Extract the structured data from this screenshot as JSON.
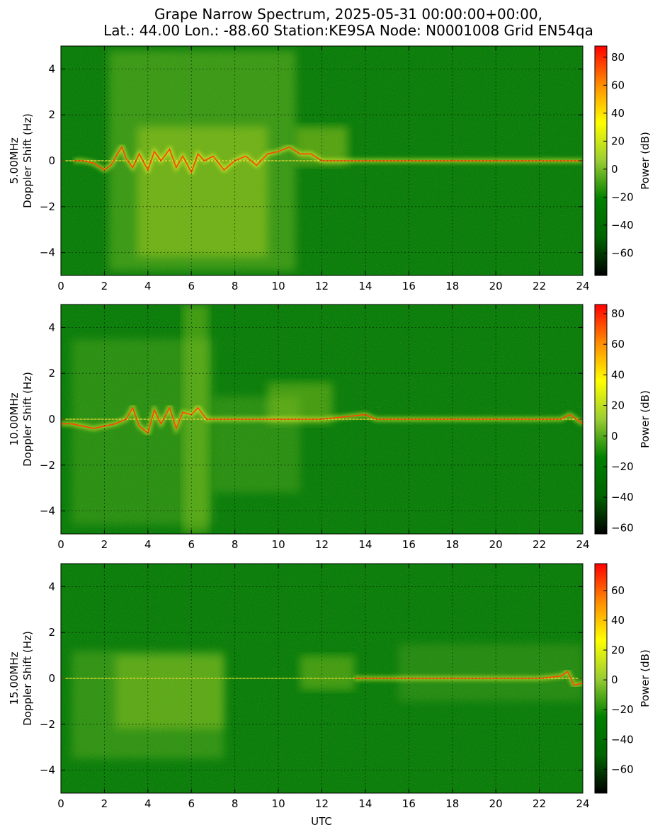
{
  "figure": {
    "title_line1": "Grape Narrow Spectrum, 2025-05-31 00:00:00+00:00,",
    "title_line2": "Lat.: 44.00 Lon.: -88.60 Station:KE9SA Node: N0001008 Grid EN54qa",
    "xlabel": "UTC"
  },
  "colors": {
    "colormap": [
      "#000000",
      "#006400",
      "#008000",
      "#9acd32",
      "#ffff00",
      "#ff8c00",
      "#ff0000"
    ],
    "grid": "#000000",
    "ridge": "#ff4500"
  },
  "chart_data": [
    {
      "type": "heatmap",
      "ylabel_line1": "5.00MHz",
      "ylabel_line2": "Doppler Shift (Hz)",
      "xlim": [
        0,
        24
      ],
      "ylim": [
        -5,
        5
      ],
      "xticks": [
        0,
        2,
        4,
        6,
        8,
        10,
        12,
        14,
        16,
        18,
        20,
        22,
        24
      ],
      "yticks": [
        -4,
        -2,
        0,
        2,
        4
      ],
      "grid": true,
      "colorbar": {
        "label": "Power (dB)",
        "ticks": [
          -60,
          -40,
          -20,
          0,
          20,
          40,
          60,
          80
        ],
        "range": [
          -76,
          88
        ]
      },
      "signal_trace": {
        "x": [
          0.6,
          1.0,
          1.5,
          2.0,
          2.3,
          2.6,
          2.8,
          3.0,
          3.3,
          3.6,
          4.0,
          4.3,
          4.6,
          5.0,
          5.3,
          5.6,
          6.0,
          6.3,
          6.6,
          7.0,
          7.5,
          8.0,
          8.5,
          9.0,
          9.5,
          10.0,
          10.5,
          11.0,
          11.5,
          12.0,
          13.0,
          14.0,
          15.8,
          17.0,
          20.0,
          22.0,
          24.0
        ],
        "y": [
          0.0,
          0.0,
          -0.1,
          -0.4,
          -0.2,
          0.3,
          0.6,
          0.1,
          -0.3,
          0.3,
          -0.4,
          0.4,
          0.0,
          0.5,
          -0.3,
          0.2,
          -0.5,
          0.3,
          0.0,
          0.2,
          -0.4,
          0.0,
          0.2,
          -0.2,
          0.3,
          0.4,
          0.6,
          0.3,
          0.3,
          0.0,
          0.0,
          0.0,
          0.0,
          0.0,
          0.0,
          0.0,
          0.0
        ]
      }
    },
    {
      "type": "heatmap",
      "ylabel_line1": "10.00MHz",
      "ylabel_line2": "Doppler Shift (Hz)",
      "xlim": [
        0,
        24
      ],
      "ylim": [
        -5,
        5
      ],
      "xticks": [
        0,
        2,
        4,
        6,
        8,
        10,
        12,
        14,
        16,
        18,
        20,
        22,
        24
      ],
      "yticks": [
        -4,
        -2,
        0,
        2,
        4
      ],
      "grid": true,
      "colorbar": {
        "label": "Power (dB)",
        "ticks": [
          -60,
          -40,
          -20,
          0,
          20,
          40,
          60,
          80
        ],
        "range": [
          -64,
          86
        ]
      },
      "signal_trace": {
        "x": [
          0.0,
          0.5,
          1.0,
          1.5,
          2.0,
          2.5,
          3.0,
          3.3,
          3.6,
          4.0,
          4.3,
          4.6,
          5.0,
          5.3,
          5.6,
          6.0,
          6.3,
          6.7,
          11.5,
          12.0,
          13.0,
          14.0,
          14.5,
          15.8,
          17.0,
          19.0,
          21.0,
          22.0,
          23.0,
          23.4,
          24.0
        ],
        "y": [
          -0.2,
          -0.2,
          -0.3,
          -0.4,
          -0.3,
          -0.2,
          0.0,
          0.5,
          -0.3,
          -0.6,
          0.4,
          -0.2,
          0.5,
          -0.4,
          0.3,
          0.2,
          0.5,
          0.0,
          0.0,
          0.0,
          0.1,
          0.2,
          0.0,
          0.0,
          0.0,
          0.0,
          0.0,
          0.0,
          0.0,
          0.2,
          -0.2
        ]
      }
    },
    {
      "type": "heatmap",
      "ylabel_line1": "15.00MHz",
      "ylabel_line2": "Doppler Shift (Hz)",
      "xlim": [
        0,
        24
      ],
      "ylim": [
        -5,
        5
      ],
      "xticks": [
        0,
        2,
        4,
        6,
        8,
        10,
        12,
        14,
        16,
        18,
        20,
        22,
        24
      ],
      "yticks": [
        -4,
        -2,
        0,
        2,
        4
      ],
      "grid": true,
      "colorbar": {
        "label": "Power (dB)",
        "ticks": [
          -60,
          -40,
          -20,
          0,
          20,
          40,
          60
        ],
        "range": [
          -76,
          78
        ]
      },
      "signal_trace": {
        "x": [
          13.5,
          14.0,
          15.0,
          15.8,
          17.0,
          18.0,
          19.0,
          20.0,
          21.0,
          22.0,
          23.0,
          23.3,
          23.6,
          24.0
        ],
        "y": [
          0.0,
          0.0,
          0.0,
          0.0,
          0.0,
          0.0,
          0.0,
          0.0,
          0.0,
          0.0,
          0.1,
          0.3,
          -0.3,
          -0.2
        ]
      }
    }
  ]
}
